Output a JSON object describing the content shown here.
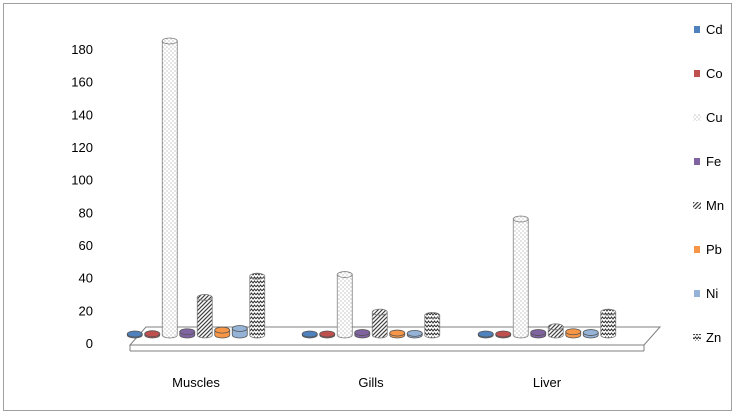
{
  "chart_data": {
    "type": "bar",
    "title": "",
    "xlabel": "",
    "ylabel": "",
    "ylim": [
      0,
      180
    ],
    "yticks": [
      0,
      20,
      40,
      60,
      80,
      100,
      120,
      140,
      160,
      180
    ],
    "categories": [
      "Muscles",
      "Gills",
      "Liver"
    ],
    "legend_position": "right",
    "grid": false,
    "series": [
      {
        "name": "Cd",
        "values": [
          0.5,
          0.4,
          0.4
        ],
        "color": "#4f81bd",
        "pattern": "solid"
      },
      {
        "name": "Co",
        "values": [
          0.8,
          0.6,
          0.6
        ],
        "color": "#c0504d",
        "pattern": "solid"
      },
      {
        "name": "Cu",
        "values": [
          180,
          37,
          71
        ],
        "color": "#d9d9d9",
        "pattern": "dots"
      },
      {
        "name": "Fe",
        "values": [
          2,
          1.5,
          1.5
        ],
        "color": "#8064a2",
        "pattern": "solid"
      },
      {
        "name": "Mn",
        "values": [
          23,
          14,
          5
        ],
        "color": "#404040",
        "pattern": "diagonal"
      },
      {
        "name": "Pb",
        "values": [
          3,
          1.2,
          2
        ],
        "color": "#f79646",
        "pattern": "solid"
      },
      {
        "name": "Ni",
        "values": [
          4,
          1,
          1.5
        ],
        "color": "#95b3d7",
        "pattern": "solid"
      },
      {
        "name": "Zn",
        "values": [
          36,
          12,
          14
        ],
        "color": "#404040",
        "pattern": "zigzag"
      }
    ]
  }
}
